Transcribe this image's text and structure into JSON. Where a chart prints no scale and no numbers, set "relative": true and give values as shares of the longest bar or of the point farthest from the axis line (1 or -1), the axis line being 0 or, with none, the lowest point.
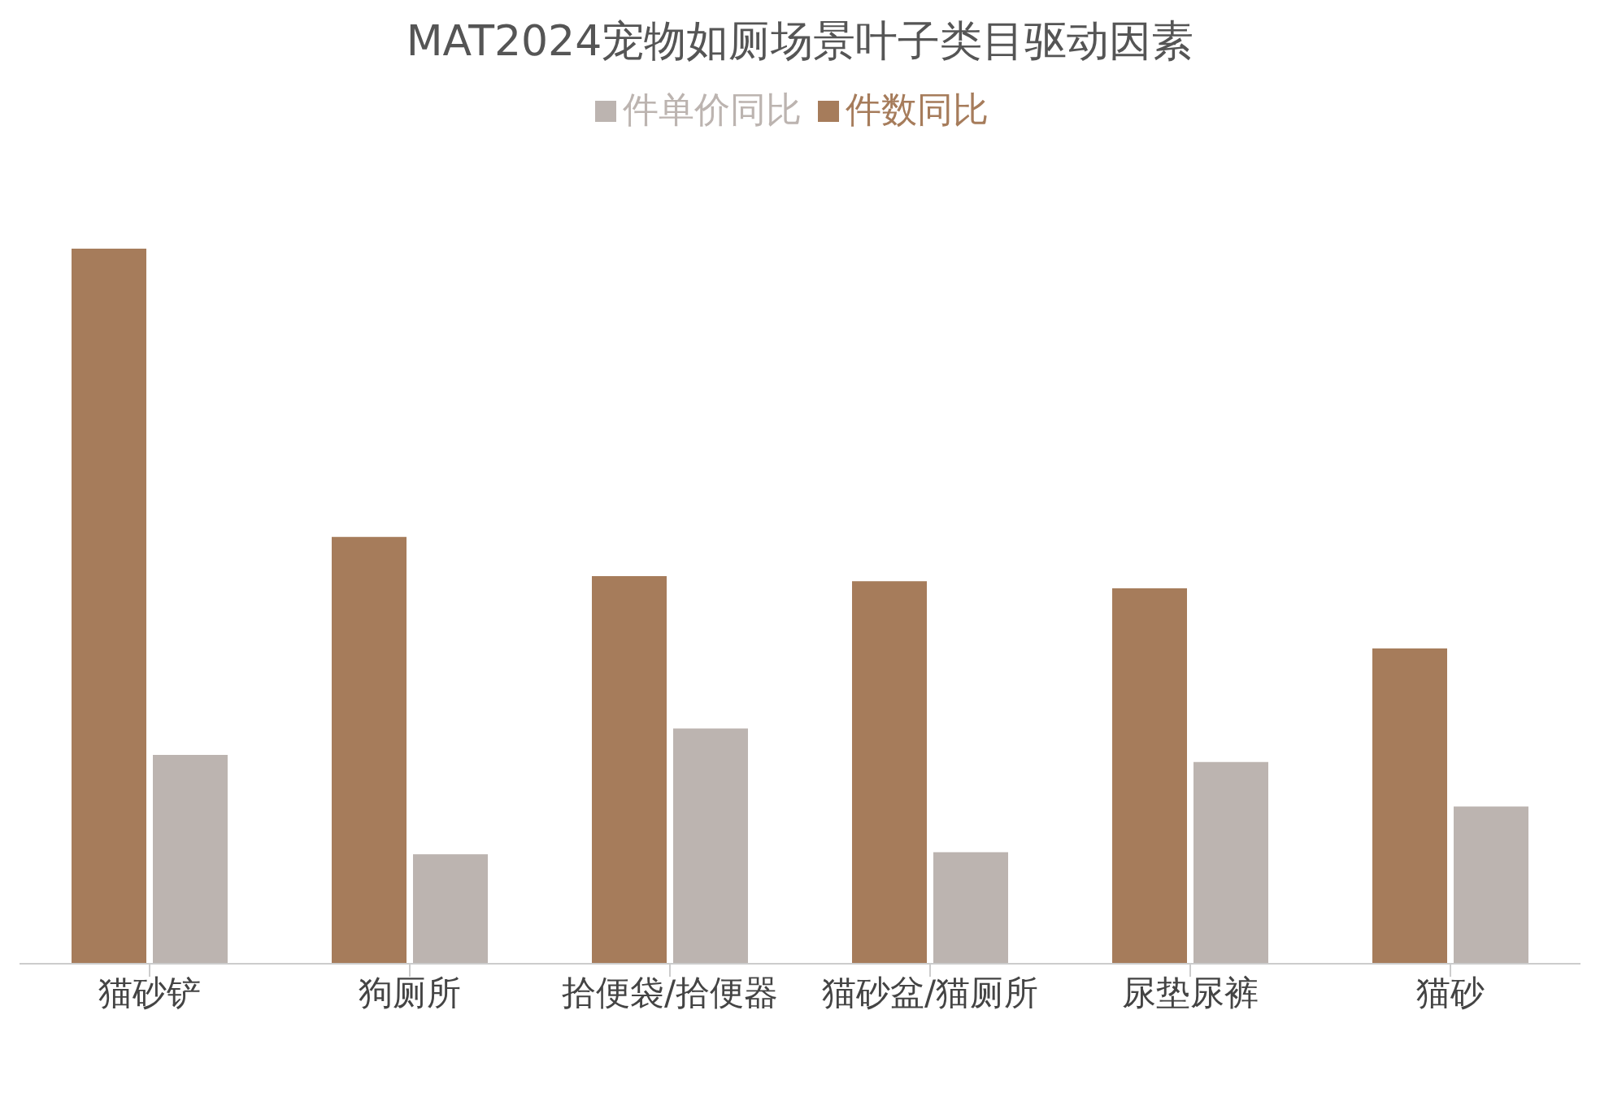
{
  "chart_data": {
    "type": "bar",
    "title": "MAT2024宠物如厕场景叶子类目驱动因素",
    "relative": true,
    "legend": "top",
    "grid": false,
    "categories": [
      "猫砂铲",
      "狗厕所",
      "拾便袋/拾便器",
      "猫砂盆/猫厕所",
      "尿垫尿裤",
      "猫砂"
    ],
    "series": [
      {
        "name": "件数同比",
        "color": "#a67c5b",
        "values": [
          1,
          0.597,
          0.542,
          0.535,
          0.525,
          0.441
        ]
      },
      {
        "name": "件单价同比",
        "color": "#bcb4b0",
        "values": [
          0.292,
          0.153,
          0.329,
          0.156,
          0.282,
          0.22
        ]
      }
    ]
  }
}
